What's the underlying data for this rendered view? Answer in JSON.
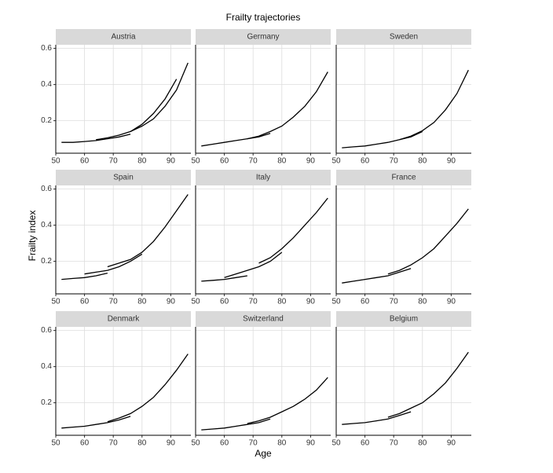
{
  "title": "Frailty trajectories",
  "xlabel": "Age",
  "ylabel": "Frailty index",
  "chart_data": [
    {
      "type": "line",
      "title": "Austria",
      "x": [
        52,
        56,
        60,
        64,
        68,
        72,
        76,
        80,
        84,
        88,
        92,
        96
      ],
      "xlim": [
        50,
        97
      ],
      "ylim": [
        0.02,
        0.62
      ],
      "xticks": [
        50,
        60,
        70,
        80,
        90
      ],
      "yticks": [
        0.2,
        0.4,
        0.6
      ],
      "grid": true,
      "series": [
        {
          "color": "#000000",
          "values": [
            0.08,
            0.08,
            0.085,
            0.09,
            0.1,
            0.11,
            0.125,
            null,
            null,
            null,
            null,
            null
          ]
        },
        {
          "color": "#000000",
          "values": [
            null,
            null,
            null,
            0.095,
            0.105,
            0.12,
            0.14,
            0.18,
            0.24,
            0.32,
            0.43,
            null
          ]
        },
        {
          "color": "#000000",
          "values": [
            null,
            null,
            null,
            null,
            null,
            null,
            0.14,
            0.17,
            0.21,
            0.28,
            0.37,
            0.52
          ]
        }
      ]
    },
    {
      "type": "line",
      "title": "Germany",
      "x": [
        52,
        56,
        60,
        64,
        68,
        72,
        76,
        80,
        84,
        88,
        92,
        96
      ],
      "xlim": [
        50,
        97
      ],
      "ylim": [
        0.02,
        0.62
      ],
      "xticks": [
        50,
        60,
        70,
        80,
        90
      ],
      "yticks": [
        0.2,
        0.4,
        0.6
      ],
      "grid": true,
      "series": [
        {
          "color": "#000000",
          "values": [
            0.06,
            0.07,
            0.08,
            0.09,
            0.1,
            0.11,
            0.13,
            null,
            null,
            null,
            null,
            null
          ]
        },
        {
          "color": "#000000",
          "values": [
            null,
            null,
            null,
            null,
            0.1,
            0.115,
            0.14,
            0.17,
            0.22,
            0.28,
            0.36,
            0.47
          ]
        }
      ]
    },
    {
      "type": "line",
      "title": "Sweden",
      "x": [
        52,
        56,
        60,
        64,
        68,
        72,
        76,
        80,
        84,
        88,
        92,
        96
      ],
      "xlim": [
        50,
        97
      ],
      "ylim": [
        0.02,
        0.62
      ],
      "xticks": [
        50,
        60,
        70,
        80,
        90
      ],
      "yticks": [
        0.2,
        0.4,
        0.6
      ],
      "grid": true,
      "series": [
        {
          "color": "#000000",
          "values": [
            0.05,
            0.055,
            0.06,
            0.07,
            0.08,
            0.095,
            0.11,
            0.14,
            null,
            null,
            null,
            null
          ]
        },
        {
          "color": "#000000",
          "values": [
            null,
            null,
            null,
            null,
            null,
            0.095,
            0.115,
            0.145,
            0.19,
            0.26,
            0.35,
            0.48
          ]
        }
      ]
    },
    {
      "type": "line",
      "title": "Spain",
      "x": [
        52,
        56,
        60,
        64,
        68,
        72,
        76,
        80,
        84,
        88,
        92,
        96
      ],
      "xlim": [
        50,
        97
      ],
      "ylim": [
        0.02,
        0.62
      ],
      "xticks": [
        50,
        60,
        70,
        80,
        90
      ],
      "yticks": [
        0.2,
        0.4,
        0.6
      ],
      "grid": true,
      "series": [
        {
          "color": "#000000",
          "values": [
            0.1,
            0.105,
            0.11,
            0.12,
            0.135,
            null,
            null,
            null,
            null,
            null,
            null,
            null
          ]
        },
        {
          "color": "#000000",
          "values": [
            null,
            null,
            0.13,
            0.14,
            0.15,
            0.17,
            0.2,
            0.24,
            null,
            null,
            null,
            null
          ]
        },
        {
          "color": "#000000",
          "values": [
            null,
            null,
            null,
            null,
            0.17,
            0.19,
            0.21,
            0.25,
            0.31,
            0.39,
            0.48,
            0.57
          ]
        }
      ]
    },
    {
      "type": "line",
      "title": "Italy",
      "x": [
        52,
        56,
        60,
        64,
        68,
        72,
        76,
        80,
        84,
        88,
        92,
        96
      ],
      "xlim": [
        50,
        97
      ],
      "ylim": [
        0.02,
        0.62
      ],
      "xticks": [
        50,
        60,
        70,
        80,
        90
      ],
      "yticks": [
        0.2,
        0.4,
        0.6
      ],
      "grid": true,
      "series": [
        {
          "color": "#000000",
          "values": [
            0.09,
            0.095,
            0.1,
            0.11,
            0.12,
            null,
            null,
            null,
            null,
            null,
            null,
            null
          ]
        },
        {
          "color": "#000000",
          "values": [
            null,
            null,
            0.11,
            0.13,
            0.15,
            0.17,
            0.2,
            0.25,
            null,
            null,
            null,
            null
          ]
        },
        {
          "color": "#000000",
          "values": [
            null,
            null,
            null,
            null,
            null,
            0.19,
            0.22,
            0.27,
            0.33,
            0.4,
            0.47,
            0.55
          ]
        }
      ]
    },
    {
      "type": "line",
      "title": "France",
      "x": [
        52,
        56,
        60,
        64,
        68,
        72,
        76,
        80,
        84,
        88,
        92,
        96
      ],
      "xlim": [
        50,
        97
      ],
      "ylim": [
        0.02,
        0.62
      ],
      "xticks": [
        50,
        60,
        70,
        80,
        90
      ],
      "yticks": [
        0.2,
        0.4,
        0.6
      ],
      "grid": true,
      "series": [
        {
          "color": "#000000",
          "values": [
            0.08,
            0.09,
            0.1,
            0.11,
            0.12,
            0.14,
            0.16,
            null,
            null,
            null,
            null,
            null
          ]
        },
        {
          "color": "#000000",
          "values": [
            null,
            null,
            null,
            null,
            0.13,
            0.15,
            0.18,
            0.22,
            0.27,
            0.34,
            0.41,
            0.49
          ]
        }
      ]
    },
    {
      "type": "line",
      "title": "Denmark",
      "x": [
        52,
        56,
        60,
        64,
        68,
        72,
        76,
        80,
        84,
        88,
        92,
        96
      ],
      "xlim": [
        50,
        97
      ],
      "ylim": [
        0.02,
        0.62
      ],
      "xticks": [
        50,
        60,
        70,
        80,
        90
      ],
      "yticks": [
        0.2,
        0.4,
        0.6
      ],
      "grid": true,
      "series": [
        {
          "color": "#000000",
          "values": [
            0.06,
            0.065,
            0.07,
            0.08,
            0.09,
            0.105,
            0.125,
            null,
            null,
            null,
            null,
            null
          ]
        },
        {
          "color": "#000000",
          "values": [
            null,
            null,
            null,
            null,
            0.095,
            0.115,
            0.14,
            0.18,
            0.23,
            0.3,
            0.38,
            0.47
          ]
        }
      ]
    },
    {
      "type": "line",
      "title": "Switzerland",
      "x": [
        52,
        56,
        60,
        64,
        68,
        72,
        76,
        80,
        84,
        88,
        92,
        96
      ],
      "xlim": [
        50,
        97
      ],
      "ylim": [
        0.02,
        0.62
      ],
      "xticks": [
        50,
        60,
        70,
        80,
        90
      ],
      "yticks": [
        0.2,
        0.4,
        0.6
      ],
      "grid": true,
      "series": [
        {
          "color": "#000000",
          "values": [
            0.05,
            0.055,
            0.06,
            0.07,
            0.08,
            0.09,
            0.11,
            null,
            null,
            null,
            null,
            null
          ]
        },
        {
          "color": "#000000",
          "values": [
            null,
            null,
            null,
            null,
            0.085,
            0.1,
            0.12,
            0.15,
            0.18,
            0.22,
            0.27,
            0.34
          ]
        }
      ]
    },
    {
      "type": "line",
      "title": "Belgium",
      "x": [
        52,
        56,
        60,
        64,
        68,
        72,
        76,
        80,
        84,
        88,
        92,
        96
      ],
      "xlim": [
        50,
        97
      ],
      "ylim": [
        0.02,
        0.62
      ],
      "xticks": [
        50,
        60,
        70,
        80,
        90
      ],
      "yticks": [
        0.2,
        0.4,
        0.6
      ],
      "grid": true,
      "series": [
        {
          "color": "#000000",
          "values": [
            0.08,
            0.085,
            0.09,
            0.1,
            0.11,
            0.13,
            0.15,
            null,
            null,
            null,
            null,
            null
          ]
        },
        {
          "color": "#000000",
          "values": [
            null,
            null,
            null,
            null,
            0.12,
            0.14,
            0.17,
            0.2,
            0.25,
            0.31,
            0.39,
            0.48
          ]
        }
      ]
    }
  ]
}
